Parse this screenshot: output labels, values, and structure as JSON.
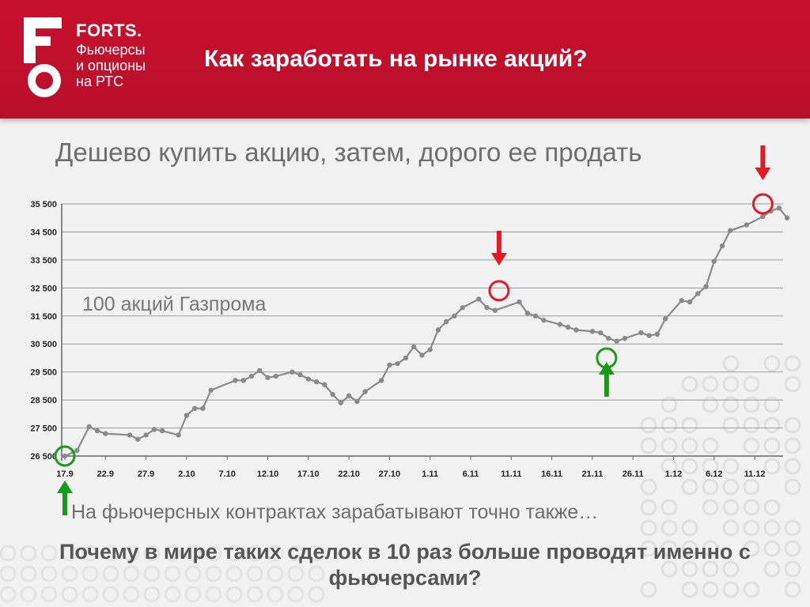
{
  "header": {
    "brand": "FORTS.",
    "tagline": [
      "Фьючерсы",
      "и опционы",
      "на РТС"
    ],
    "title": "Как заработать на рынке акций?"
  },
  "subtitle": "Дешево купить акцию, затем, дорого ее продать",
  "note": "На фьючерсных контрактах зарабатывают точно также…",
  "question": "Почему в мире таких сделок в 10 раз больше проводят именно с фьючерсами?",
  "colors": {
    "header": "#c8102e",
    "line": "#888888",
    "buy": "#1a9a1a",
    "sell": "#e01b24"
  },
  "chart_data": {
    "type": "line",
    "annotation": "100 акций Газпрома",
    "x_ticks": [
      "17.9",
      "22.9",
      "27.9",
      "2.10",
      "7.10",
      "12.10",
      "17.10",
      "22.10",
      "27.10",
      "1.11",
      "6.11",
      "11.11",
      "16.11",
      "21.11",
      "26.11",
      "1.12",
      "6.12",
      "11.12"
    ],
    "y_ticks": [
      26500,
      27500,
      28500,
      29500,
      30500,
      31500,
      32500,
      33500,
      34500,
      35500
    ],
    "y_tick_labels": [
      "26 500",
      "27 500",
      "28 500",
      "29 500",
      "30 500",
      "31 500",
      "32 500",
      "33 500",
      "34 500",
      "35 500"
    ],
    "ylim": [
      26500,
      35500
    ],
    "grid": true,
    "series": [
      {
        "x": [
          0,
          0.3,
          0.6,
          0.8,
          1,
          1.6,
          1.8,
          2,
          2.2,
          2.4,
          2.8,
          3,
          3.2,
          3.4,
          3.6,
          4.2,
          4.4,
          4.6,
          4.8,
          5,
          5.2,
          5.6,
          5.8,
          6,
          6.2,
          6.4,
          6.6,
          6.8,
          7,
          7.2,
          7.4,
          7.8,
          8,
          8.2,
          8.4,
          8.6,
          8.8,
          9,
          9.2,
          9.4,
          9.6,
          9.8,
          10.2,
          10.4,
          10.6,
          11.2,
          11.4,
          11.6,
          11.8,
          12.2,
          12.4,
          12.6,
          13,
          13.2,
          13.4,
          13.6,
          13.8,
          14.2,
          14.4,
          14.6,
          14.8,
          15.2,
          15.4,
          15.6,
          15.8,
          16,
          16.2,
          16.4,
          16.8,
          17.2,
          17.4,
          17.6,
          17.8
        ],
        "y": [
          26500,
          26700,
          27550,
          27400,
          27300,
          27250,
          27100,
          27250,
          27450,
          27400,
          27250,
          27950,
          28200,
          28200,
          28850,
          29200,
          29200,
          29350,
          29550,
          29300,
          29350,
          29500,
          29400,
          29250,
          29150,
          29050,
          28700,
          28400,
          28650,
          28450,
          28800,
          29200,
          29750,
          29800,
          30000,
          30400,
          30100,
          30300,
          31000,
          31300,
          31500,
          31800,
          32100,
          31800,
          31700,
          32000,
          31600,
          31500,
          31350,
          31200,
          31100,
          31000,
          30950,
          30900,
          30700,
          30600,
          30700,
          30900,
          30800,
          30850,
          31400,
          32050,
          32000,
          32300,
          32550,
          33450,
          34000,
          34550,
          34750,
          35050,
          35250,
          35350,
          35000
        ]
      }
    ],
    "buy_markers": [
      {
        "x": 0,
        "y": 26500
      },
      {
        "x": 13.35,
        "y": 30000
      }
    ],
    "sell_markers": [
      {
        "x": 10.7,
        "y": 32400
      },
      {
        "x": 17.2,
        "y": 35500
      }
    ]
  }
}
